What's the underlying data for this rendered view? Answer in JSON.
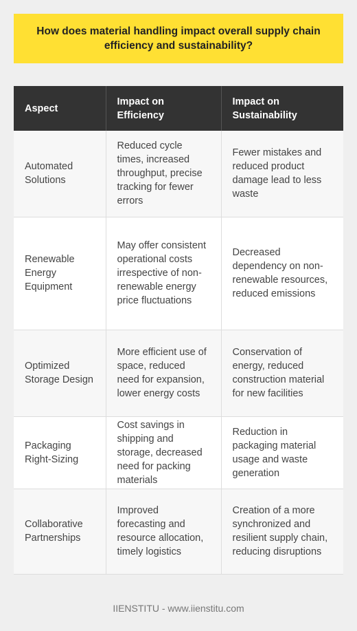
{
  "title": "How does material handling impact overall supply chain efficiency and sustainability?",
  "table": {
    "headers": [
      "Aspect",
      "Impact on Efficiency",
      "Impact on Sustainability"
    ],
    "rows": [
      [
        "Automated Solutions",
        "Reduced cycle times, increased throughput, precise tracking for fewer errors",
        "Fewer mistakes and reduced product damage lead to less waste"
      ],
      [
        "Renewable Energy Equipment",
        "May offer consistent operational costs irrespective of non-renewable energy price fluctuations",
        "Decreased dependency on non-renewable resources, reduced emissions"
      ],
      [
        "Optimized Storage Design",
        "More efficient use of space, reduced need for expansion, lower energy costs",
        "Conservation of energy, reduced construction material for new facilities"
      ],
      [
        "Packaging Right-Sizing",
        "Cost savings in shipping and storage, decreased need for packing materials",
        "Reduction in packaging material usage and waste generation"
      ],
      [
        "Collaborative Partnerships",
        "Improved forecasting and resource allocation, timely logistics",
        "Creation of a more synchronized and resilient supply chain, reducing disruptions"
      ]
    ]
  },
  "footer": "IIENSTITU - www.iienstitu.com"
}
